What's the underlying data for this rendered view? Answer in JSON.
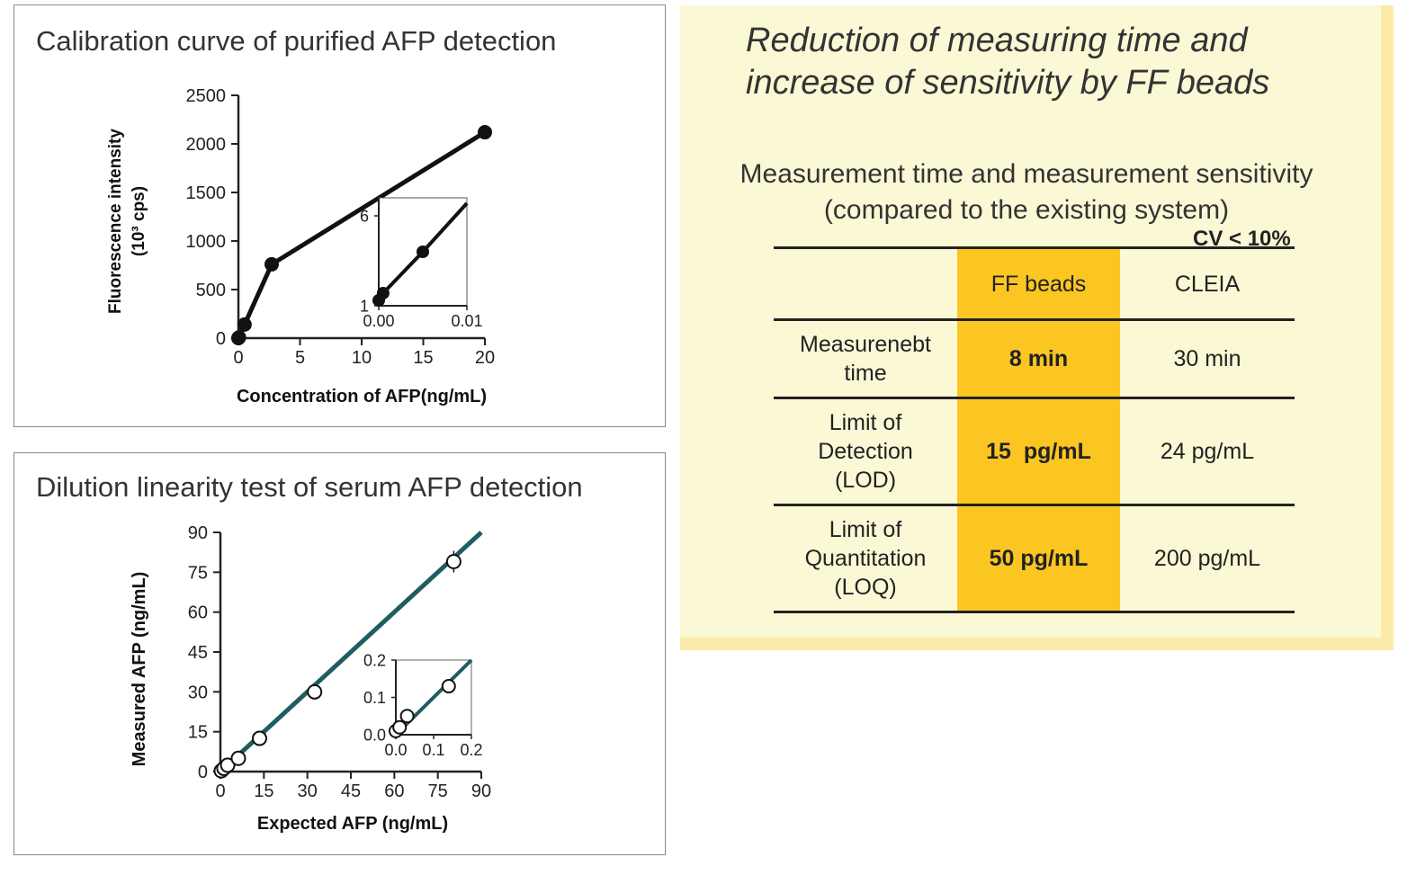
{
  "chart_data": [
    {
      "type": "line",
      "title": "Calibration curve of purified AFP detection",
      "xlabel": "Concentration of AFP(ng/mL)",
      "ylabel": "Fluorescence intensity",
      "ylabel_unit": "(10³ cps)",
      "xlim": [
        0,
        20
      ],
      "ylim": [
        0,
        2500
      ],
      "xticks": [
        0,
        5,
        10,
        15,
        20
      ],
      "yticks": [
        0,
        500,
        1000,
        1500,
        2000,
        2500
      ],
      "series": [
        {
          "x": [
            0,
            0.01,
            0.05,
            0.5,
            2.7,
            20
          ],
          "y": [
            0,
            2,
            8,
            140,
            760,
            2120
          ]
        }
      ],
      "inset": {
        "xlim": [
          0.0,
          0.01
        ],
        "ylim": [
          1,
          7
        ],
        "xtick_labels": [
          "0.00",
          "0.01"
        ],
        "ytick_labels": [
          "1",
          "6"
        ],
        "xticks": [
          0,
          0.01
        ],
        "yticks": [
          1,
          6
        ],
        "series": [
          {
            "x": [
              0.0,
              0.0005,
              0.005
            ],
            "y": [
              1.3,
              1.7,
              4.0
            ]
          }
        ],
        "line_to": [
          0.01,
          6.7
        ]
      }
    },
    {
      "type": "scatter",
      "title": "Dilution linearity test of serum AFP detection",
      "xlabel": "Expected AFP (ng/mL)",
      "ylabel": "Measured AFP (ng/mL)",
      "xlim": [
        0,
        90
      ],
      "ylim": [
        0,
        90
      ],
      "xticks": [
        0,
        15,
        30,
        45,
        60,
        75,
        90
      ],
      "yticks": [
        0,
        15,
        30,
        45,
        60,
        75,
        90
      ],
      "series": [
        {
          "x": [
            0.3,
            1.2,
            2.5,
            6.2,
            13.5,
            32.5,
            80.5
          ],
          "y": [
            0.3,
            1.2,
            2.4,
            5.0,
            12.5,
            30.0,
            79.0
          ]
        }
      ],
      "fit_line": [
        [
          0,
          0
        ],
        [
          90,
          90
        ]
      ],
      "inset": {
        "xlim": [
          0,
          0.2
        ],
        "ylim": [
          0,
          0.2
        ],
        "xtick_labels": [
          "0.0",
          "0.1",
          "0.2"
        ],
        "ytick_labels": [
          "0.0",
          "0.1",
          "0.2"
        ],
        "xticks": [
          0,
          0.1,
          0.2
        ],
        "yticks": [
          0,
          0.1,
          0.2
        ],
        "series": [
          {
            "x": [
              0.0,
              0.01,
              0.03,
              0.14
            ],
            "y": [
              0.01,
              0.02,
              0.05,
              0.13
            ]
          }
        ]
      }
    }
  ],
  "summary": {
    "heading_line1": "Reduction of measuring time and",
    "heading_line2": "increase of sensitivity by FF beads",
    "subheading_line1": "Measurement time and measurement sensitivity",
    "subheading_line2": "(compared to the existing system)",
    "cv_note": "CV < 10%",
    "table": {
      "col_headers": [
        "",
        "FF beads",
        "CLEIA"
      ],
      "rows": [
        {
          "label": [
            "Measurenebt",
            "time"
          ],
          "ff": "8 min",
          "cleia": "30 min"
        },
        {
          "label": [
            "Limit of",
            "Detection",
            "(LOD)"
          ],
          "ff": "15  pg/mL",
          "cleia": "24 pg/mL"
        },
        {
          "label": [
            "Limit of",
            "Quantitation",
            "(LOQ)"
          ],
          "ff": "50 pg/mL",
          "cleia": "200 pg/mL"
        }
      ]
    }
  },
  "colors": {
    "summary_bg": "#fbf8d6",
    "summary_shadow": "#fbeaa8",
    "ff_column": "#fbc622",
    "fit_line_teal": "#1f5d5f"
  }
}
